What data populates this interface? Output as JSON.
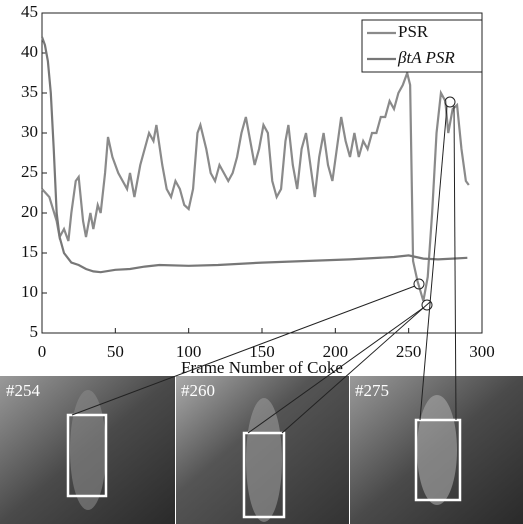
{
  "chart_data": {
    "type": "line",
    "x_label": "Frame Number of Coke",
    "xlim": [
      0,
      300
    ],
    "xticks": [
      0,
      50,
      100,
      150,
      200,
      250,
      300
    ],
    "ylim": [
      5,
      45
    ],
    "yticks": [
      5,
      10,
      15,
      20,
      25,
      30,
      35,
      40,
      45
    ],
    "legend": "top-right",
    "series": [
      {
        "name": "PSR",
        "color": "#8a8a8a",
        "x": [
          0,
          5,
          10,
          12,
          15,
          18,
          20,
          23,
          25,
          28,
          30,
          33,
          35,
          38,
          40,
          43,
          45,
          48,
          52,
          55,
          58,
          60,
          63,
          67,
          70,
          73,
          76,
          78,
          82,
          85,
          88,
          91,
          94,
          97,
          100,
          103,
          106,
          108,
          112,
          115,
          118,
          121,
          124,
          127,
          130,
          133,
          136,
          139,
          142,
          145,
          148,
          151,
          154,
          157,
          160,
          163,
          166,
          168,
          171,
          174,
          177,
          180,
          183,
          186,
          189,
          192,
          195,
          198,
          201,
          204,
          207,
          210,
          213,
          216,
          219,
          222,
          225,
          228,
          231,
          234,
          237,
          240,
          243,
          246,
          249,
          251,
          253,
          256,
          260,
          263,
          266,
          269,
          272,
          275,
          277,
          280,
          283,
          286,
          289,
          291
        ],
        "values": [
          23,
          22,
          19,
          17,
          18,
          16.5,
          20,
          24,
          24.5,
          19,
          17,
          20,
          18,
          21,
          20,
          25,
          29.5,
          27,
          25,
          24,
          23,
          25,
          22,
          26,
          28,
          30,
          29,
          31,
          26,
          23,
          22,
          24,
          23,
          21,
          20.5,
          23,
          30,
          31,
          28,
          25,
          24,
          26,
          25,
          24,
          25,
          27,
          30,
          32,
          29,
          26,
          28,
          31,
          30,
          24,
          22,
          23,
          29,
          31,
          26,
          23,
          28,
          30,
          26,
          22,
          27,
          30,
          26,
          24,
          28,
          32,
          29,
          27,
          30,
          27,
          29,
          28,
          30,
          30,
          32,
          32,
          34,
          33,
          35,
          36,
          37.5,
          36,
          14,
          11.5,
          9,
          12,
          20,
          30,
          35,
          34,
          30,
          33,
          33.5,
          28,
          24,
          23.5
        ]
      },
      {
        "name": "βtA PSR",
        "color": "#777777",
        "x": [
          0,
          2,
          4,
          6,
          8,
          10,
          12,
          15,
          20,
          25,
          30,
          35,
          40,
          50,
          60,
          70,
          80,
          100,
          120,
          150,
          180,
          210,
          240,
          250,
          255,
          260,
          270,
          280,
          290
        ],
        "values": [
          42,
          41,
          39,
          35,
          28,
          20,
          17,
          15,
          13.8,
          13.5,
          13,
          12.7,
          12.6,
          12.9,
          13,
          13.3,
          13.5,
          13.4,
          13.5,
          13.8,
          14,
          14.2,
          14.5,
          14.7,
          14.5,
          14.3,
          14.2,
          14.3,
          14.4
        ]
      }
    ]
  },
  "images": [
    {
      "label": "#254"
    },
    {
      "label": "#260"
    },
    {
      "label": "#275"
    }
  ]
}
